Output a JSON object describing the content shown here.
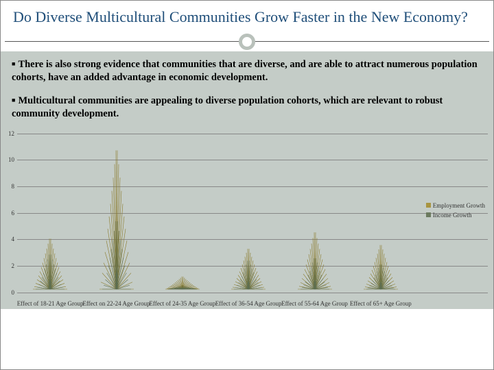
{
  "title": "Do Diverse Multicultural Communities Grow Faster in the New Economy?",
  "bullets": [
    "There is also strong evidence that communities that are diverse, and are able to attract numerous population cohorts, have an added advantage in economic development.",
    "Multicultural communities are appealing to diverse population cohorts, which are relevant to robust community development."
  ],
  "chart": {
    "type": "bar",
    "ylim": [
      0,
      12
    ],
    "ytick_step": 2,
    "yticks": [
      0,
      2,
      4,
      6,
      8,
      10,
      12
    ],
    "grid_color": "#888888",
    "background_color": "#c4ccc7",
    "series": [
      {
        "name": "Employment Growth",
        "color": "#a89440"
      },
      {
        "name": "Income Growth",
        "color": "#6b7a5f"
      }
    ],
    "categories": [
      {
        "label": "Effect of 18-21 Age Group",
        "employment": 4.0,
        "income": 2.8
      },
      {
        "label": "Effect on 22-24 Age Group",
        "employment": 11.0,
        "income": 5.5
      },
      {
        "label": "Effect of 24-35 Age Group",
        "employment": 1.0,
        "income": 0.3
      },
      {
        "label": "Effect of 36-54 Age Group",
        "employment": 3.2,
        "income": 2.3
      },
      {
        "label": "Effect of 55-64 Age Group",
        "employment": 4.5,
        "income": 2.5
      },
      {
        "label": "Effect of 65+ Age Group",
        "employment": 3.5,
        "income": 2.0
      }
    ],
    "legend_position": "right",
    "label_fontsize": 9,
    "ornament_stroke": "#8a7a2a",
    "ornament_stroke2": "#5c6e52"
  },
  "colors": {
    "title": "#1f4e79",
    "panel_bg": "#c4ccc7",
    "rule": "#555555"
  }
}
